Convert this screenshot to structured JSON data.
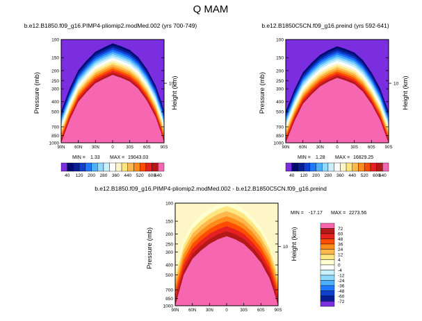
{
  "title": "Q MAM",
  "colors": {
    "zone_bands_absolute": [
      "#f766b0",
      "#b41818",
      "#e62020",
      "#ff4d00",
      "#ff8c1a",
      "#ffb84d",
      "#ffe680",
      "#fff5c8",
      "#ffffff",
      "#c8f0ff",
      "#8fd8ff",
      "#4db0ff",
      "#1f78ff",
      "#1040d0",
      "#081e96",
      "#000a6e",
      "#7a2ee0"
    ],
    "zone_bands_diff": [
      "#f766b0",
      "#b41818",
      "#e62020",
      "#ff4d00",
      "#ff8c1a",
      "#ffb84d",
      "#ffe680",
      "#ffffd0",
      "#fff6c8"
    ]
  },
  "chart_data": [
    {
      "type": "contour",
      "title": "b.e12.B1850.f09_g16.PIMP4-pliomip2.modMed.002 (yrs 700-749)",
      "xlabel": "",
      "ylabel": "Pressure (mb)",
      "y2label": "Height (km)",
      "x_ticks": [
        "90N",
        "60N",
        "30N",
        "0",
        "30S",
        "60S",
        "90S"
      ],
      "y_ticks": [
        "100",
        "150",
        "200",
        "250",
        "300",
        "400",
        "500",
        "700",
        "850",
        "1000"
      ],
      "y2_ticks": [
        "10"
      ],
      "min_label": "MIN =",
      "min_value": "1.33",
      "max_label": "MAX =",
      "max_value": "19043.03",
      "colorbar_labels": [
        "40",
        "120",
        "200",
        "280",
        "360",
        "440",
        "520",
        "600",
        "640"
      ],
      "colorbar_levels": [
        40,
        80,
        120,
        160,
        200,
        240,
        280,
        320,
        360,
        400,
        440,
        480,
        520,
        560,
        600,
        640
      ],
      "lat_deg": [
        90,
        75,
        60,
        45,
        30,
        15,
        0,
        -15,
        -30,
        -45,
        -60,
        -75,
        -85,
        -90
      ],
      "top_contour_mb": [
        1000,
        600,
        400,
        320,
        265,
        240,
        220,
        235,
        255,
        300,
        390,
        560,
        800,
        1000
      ]
    },
    {
      "type": "contour",
      "title": "b.e12.B1850C5CN.f09_g16.preind (yrs 592-641)",
      "xlabel": "",
      "ylabel": "Pressure (mb)",
      "y2label": "Height (km)",
      "x_ticks": [
        "90N",
        "60N",
        "30N",
        "0",
        "30S",
        "60S",
        "90S"
      ],
      "y_ticks": [
        "100",
        "150",
        "200",
        "250",
        "300",
        "400",
        "500",
        "700",
        "850",
        "1000"
      ],
      "y2_ticks": [
        "10"
      ],
      "min_label": "MIN =",
      "min_value": "1.28",
      "max_label": "MAX =",
      "max_value": "16829.25",
      "colorbar_labels": [
        "40",
        "120",
        "200",
        "280",
        "360",
        "440",
        "520",
        "600",
        "640"
      ],
      "colorbar_levels": [
        40,
        80,
        120,
        160,
        200,
        240,
        280,
        320,
        360,
        400,
        440,
        480,
        520,
        560,
        600,
        640
      ],
      "lat_deg": [
        90,
        75,
        60,
        45,
        30,
        15,
        0,
        -15,
        -30,
        -45,
        -60,
        -75,
        -85,
        -90
      ],
      "top_contour_mb": [
        1000,
        620,
        420,
        340,
        285,
        255,
        235,
        250,
        270,
        320,
        420,
        600,
        850,
        1000
      ]
    },
    {
      "type": "contour",
      "title": "b.e12.B1850.f09_g16.PIMP4-pliomip2.modMed.002 - b.e12.B1850C5CN.f09_g16.preind",
      "xlabel": "",
      "ylabel": "Pressure (mb)",
      "y2label": "Height (km)",
      "x_ticks": [
        "90N",
        "60N",
        "30N",
        "0",
        "30S",
        "60S",
        "90S"
      ],
      "y_ticks": [
        "100",
        "150",
        "200",
        "250",
        "300",
        "400",
        "500",
        "700",
        "850",
        "1000"
      ],
      "y2_ticks": [
        "10"
      ],
      "min_label": "MIN =",
      "min_value": "-17.17",
      "max_label": "MAX =",
      "max_value": "2273.56",
      "colorbar_labels": [
        "72",
        "60",
        "48",
        "36",
        "24",
        "12",
        "4",
        "0",
        "-4",
        "-12",
        "-24",
        "-36",
        "-48",
        "-60",
        "-72"
      ],
      "colorbar_levels": [
        72,
        60,
        48,
        36,
        24,
        12,
        4,
        0,
        -4,
        -12,
        -24,
        -36,
        -48,
        -60,
        -72
      ],
      "lat_deg": [
        90,
        75,
        60,
        45,
        30,
        15,
        0,
        -15,
        -30,
        -45,
        -60,
        -75,
        -85,
        -90
      ],
      "top_contour_mb": [
        1000,
        500,
        350,
        290,
        250,
        225,
        210,
        225,
        250,
        300,
        380,
        540,
        800,
        1000
      ]
    }
  ]
}
